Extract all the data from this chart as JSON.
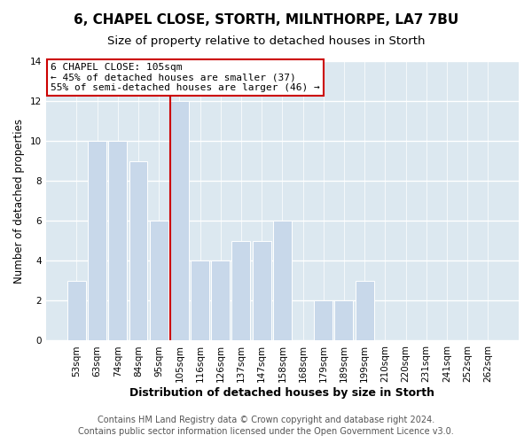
{
  "title": "6, CHAPEL CLOSE, STORTH, MILNTHORPE, LA7 7BU",
  "subtitle": "Size of property relative to detached houses in Storth",
  "xlabel": "Distribution of detached houses by size in Storth",
  "ylabel": "Number of detached properties",
  "categories": [
    "53sqm",
    "63sqm",
    "74sqm",
    "84sqm",
    "95sqm",
    "105sqm",
    "116sqm",
    "126sqm",
    "137sqm",
    "147sqm",
    "158sqm",
    "168sqm",
    "179sqm",
    "189sqm",
    "199sqm",
    "210sqm",
    "220sqm",
    "231sqm",
    "241sqm",
    "252sqm",
    "262sqm"
  ],
  "values": [
    3,
    10,
    10,
    9,
    6,
    12,
    4,
    4,
    5,
    5,
    6,
    0,
    2,
    2,
    3,
    0,
    0,
    0,
    0,
    0,
    0
  ],
  "bar_color": "#c8d8ea",
  "highlight_bar_index": 5,
  "highlight_line_color": "#cc0000",
  "ylim": [
    0,
    14
  ],
  "yticks": [
    0,
    2,
    4,
    6,
    8,
    10,
    12,
    14
  ],
  "annotation_title": "6 CHAPEL CLOSE: 105sqm",
  "annotation_line1": "← 45% of detached houses are smaller (37)",
  "annotation_line2": "55% of semi-detached houses are larger (46) →",
  "annotation_box_color": "#ffffff",
  "annotation_box_edge_color": "#cc0000",
  "footer_line1": "Contains HM Land Registry data © Crown copyright and database right 2024.",
  "footer_line2": "Contains public sector information licensed under the Open Government Licence v3.0.",
  "plot_bg_color": "#dce8f0",
  "fig_bg_color": "#ffffff",
  "grid_color": "#ffffff",
  "title_fontsize": 11,
  "subtitle_fontsize": 9.5,
  "xlabel_fontsize": 9,
  "ylabel_fontsize": 8.5,
  "tick_fontsize": 7.5,
  "footer_fontsize": 7,
  "ann_fontsize": 8
}
